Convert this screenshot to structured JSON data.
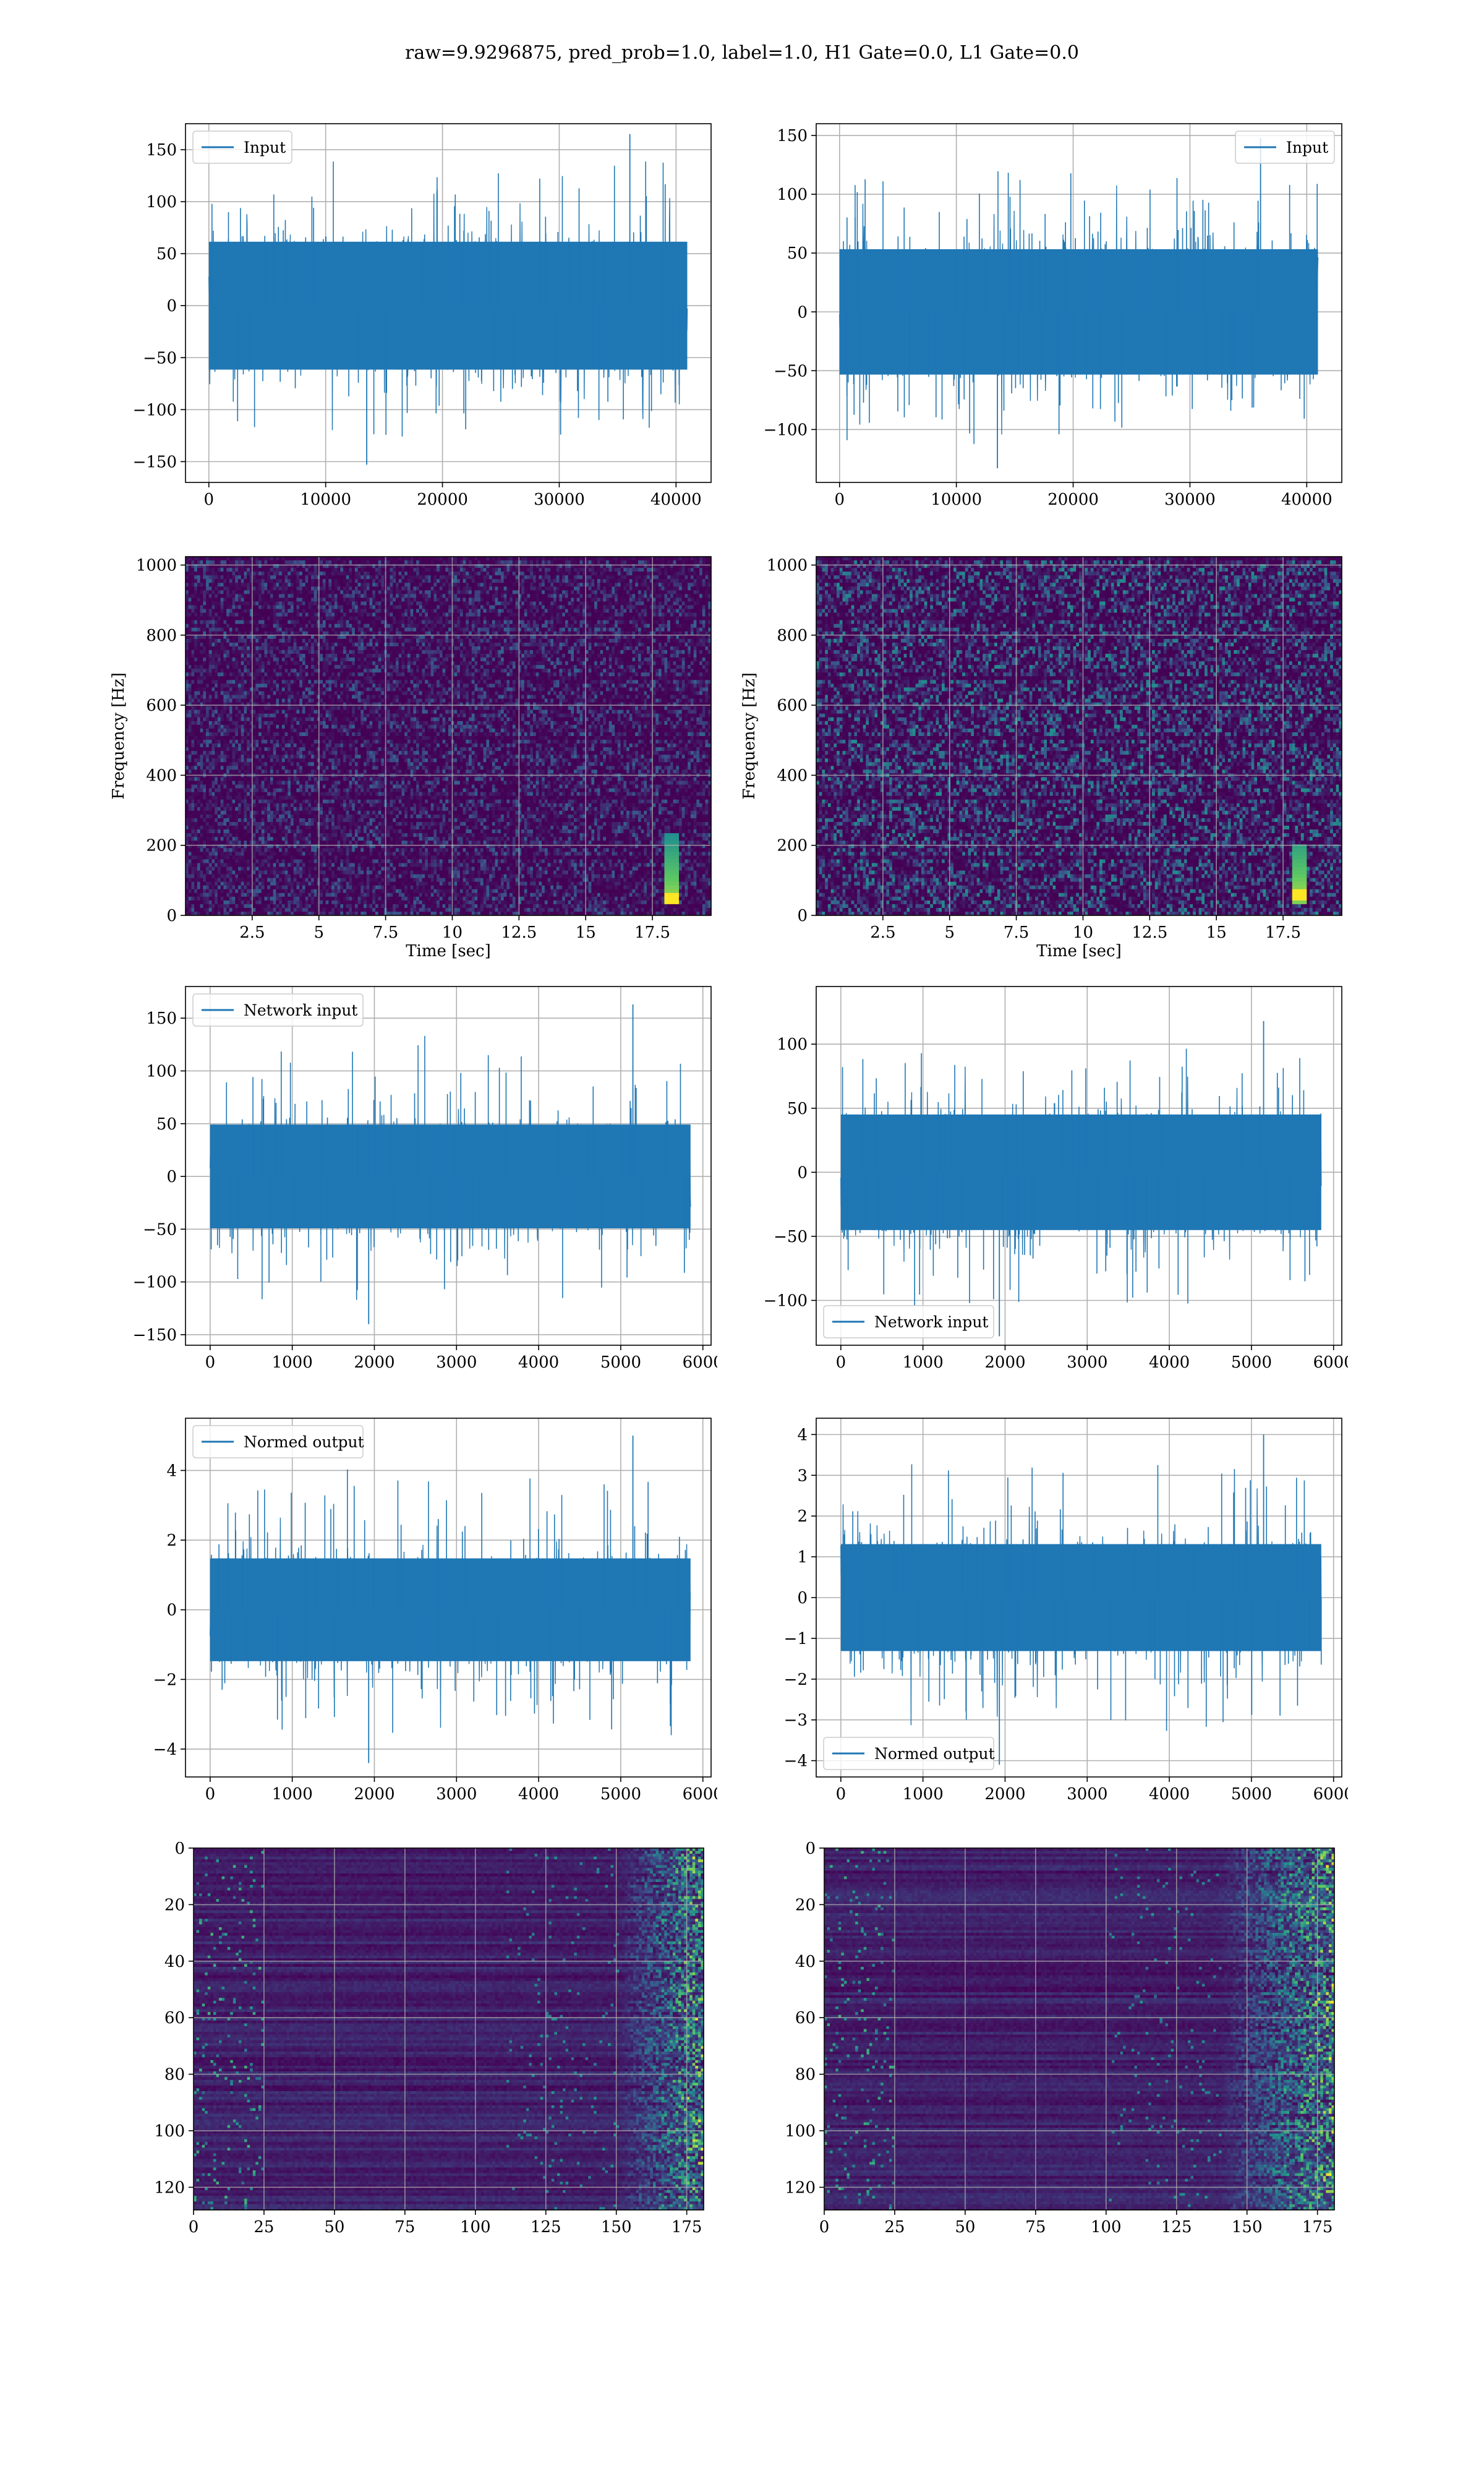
{
  "title": "raw=9.9296875, pred_prob=1.0, label=1.0, H1 Gate=0.0, L1 Gate=0.0",
  "colors": {
    "line": "#1f77b4",
    "grid": "#b0b0b0",
    "viridis_dark": "#440154",
    "viridis_bright": "#fde725"
  },
  "chart_data": [
    {
      "id": "h1-input",
      "type": "line",
      "title": "",
      "xlabel": "",
      "ylabel": "",
      "xlim": [
        -2000,
        43000
      ],
      "ylim": [
        -170,
        175
      ],
      "xticks": [
        0,
        10000,
        20000,
        30000,
        40000
      ],
      "yticks": [
        -150,
        -100,
        -50,
        0,
        50,
        100,
        150
      ],
      "grid": true,
      "legend": "upper left",
      "series": [
        {
          "name": "Input",
          "x_range": [
            0,
            40960
          ],
          "typical_envelope": [
            -75,
            75
          ],
          "peak_range": [
            -153,
            165
          ]
        }
      ]
    },
    {
      "id": "l1-input",
      "type": "line",
      "title": "",
      "xlabel": "",
      "ylabel": "",
      "xlim": [
        -2000,
        43000
      ],
      "ylim": [
        -145,
        160
      ],
      "xticks": [
        0,
        10000,
        20000,
        30000,
        40000
      ],
      "yticks": [
        -100,
        -50,
        0,
        50,
        100,
        150
      ],
      "grid": true,
      "legend": "upper right",
      "series": [
        {
          "name": "Input",
          "x_range": [
            0,
            40960
          ],
          "typical_envelope": [
            -65,
            65
          ],
          "peak_range": [
            -133,
            148
          ]
        }
      ]
    },
    {
      "id": "h1-spectrogram",
      "type": "heatmap",
      "title": "",
      "xlabel": "Time [sec]",
      "ylabel": "Frequency [Hz]",
      "xlim": [
        0,
        19.7
      ],
      "ylim": [
        0,
        1024
      ],
      "xticks": [
        2.5,
        5.0,
        7.5,
        10.0,
        12.5,
        15.0,
        17.5
      ],
      "yticks": [
        0,
        200,
        400,
        600,
        800,
        1000
      ],
      "grid": true,
      "colormap": "viridis",
      "bright_features": [
        {
          "x": 18.2,
          "y_range": [
            30,
            230
          ],
          "peak_y": 50
        }
      ]
    },
    {
      "id": "l1-spectrogram",
      "type": "heatmap",
      "title": "",
      "xlabel": "Time [sec]",
      "ylabel": "Frequency [Hz]",
      "xlim": [
        0,
        19.7
      ],
      "ylim": [
        0,
        1024
      ],
      "xticks": [
        2.5,
        5.0,
        7.5,
        10.0,
        12.5,
        15.0,
        17.5
      ],
      "yticks": [
        0,
        200,
        400,
        600,
        800,
        1000
      ],
      "grid": true,
      "colormap": "viridis",
      "bright_features": [
        {
          "x": 18.1,
          "y_range": [
            30,
            200
          ],
          "peak_y": 60
        }
      ]
    },
    {
      "id": "h1-network-input",
      "type": "line",
      "title": "",
      "xlabel": "",
      "ylabel": "",
      "xlim": [
        -300,
        6100
      ],
      "ylim": [
        -160,
        180
      ],
      "xticks": [
        0,
        1000,
        2000,
        3000,
        4000,
        5000,
        6000
      ],
      "yticks": [
        -150,
        -100,
        -50,
        0,
        50,
        100,
        150
      ],
      "grid": true,
      "legend": "upper left",
      "series": [
        {
          "name": "Network input",
          "x_range": [
            0,
            5850
          ],
          "typical_envelope": [
            -60,
            60
          ],
          "peak_range": [
            -140,
            163
          ]
        }
      ]
    },
    {
      "id": "l1-network-input",
      "type": "line",
      "title": "",
      "xlabel": "",
      "ylabel": "",
      "xlim": [
        -300,
        6100
      ],
      "ylim": [
        -135,
        145
      ],
      "xticks": [
        0,
        1000,
        2000,
        3000,
        4000,
        5000,
        6000
      ],
      "yticks": [
        -100,
        -50,
        0,
        50,
        100
      ],
      "grid": true,
      "legend": "lower left",
      "series": [
        {
          "name": "Network input",
          "x_range": [
            0,
            5850
          ],
          "typical_envelope": [
            -55,
            55
          ],
          "peak_range": [
            -128,
            118
          ]
        }
      ]
    },
    {
      "id": "h1-normed-output",
      "type": "line",
      "title": "",
      "xlabel": "",
      "ylabel": "",
      "xlim": [
        -300,
        6100
      ],
      "ylim": [
        -4.8,
        5.5
      ],
      "xticks": [
        0,
        1000,
        2000,
        3000,
        4000,
        5000,
        6000
      ],
      "yticks": [
        -4,
        -2,
        0,
        2,
        4
      ],
      "grid": true,
      "legend": "upper left",
      "series": [
        {
          "name": "Normed output",
          "x_range": [
            0,
            5850
          ],
          "typical_envelope": [
            -1.8,
            1.8
          ],
          "peak_range": [
            -4.4,
            5.0
          ]
        }
      ]
    },
    {
      "id": "l1-normed-output",
      "type": "line",
      "title": "",
      "xlabel": "",
      "ylabel": "",
      "xlim": [
        -300,
        6100
      ],
      "ylim": [
        -4.4,
        4.4
      ],
      "xticks": [
        0,
        1000,
        2000,
        3000,
        4000,
        5000,
        6000
      ],
      "yticks": [
        -4,
        -3,
        -2,
        -1,
        0,
        1,
        2,
        3,
        4
      ],
      "grid": true,
      "legend": "lower left",
      "series": [
        {
          "name": "Normed output",
          "x_range": [
            0,
            5850
          ],
          "typical_envelope": [
            -1.6,
            1.6
          ],
          "peak_range": [
            -4.1,
            4.0
          ]
        }
      ]
    },
    {
      "id": "h1-feature-map",
      "type": "heatmap",
      "title": "",
      "xlabel": "",
      "ylabel": "",
      "xlim": [
        0,
        181
      ],
      "ylim": [
        128,
        0
      ],
      "xticks": [
        0,
        25,
        50,
        75,
        100,
        125,
        150,
        175
      ],
      "yticks": [
        0,
        20,
        40,
        60,
        80,
        100,
        120
      ],
      "grid": true,
      "colormap": "viridis",
      "bright_region_x": [
        150,
        181
      ]
    },
    {
      "id": "l1-feature-map",
      "type": "heatmap",
      "title": "",
      "xlabel": "",
      "ylabel": "",
      "xlim": [
        0,
        181
      ],
      "ylim": [
        128,
        0
      ],
      "xticks": [
        0,
        25,
        50,
        75,
        100,
        125,
        150,
        175
      ],
      "yticks": [
        0,
        20,
        40,
        60,
        80,
        100,
        120
      ],
      "grid": true,
      "colormap": "viridis",
      "bright_region_x": [
        140,
        181
      ]
    }
  ]
}
